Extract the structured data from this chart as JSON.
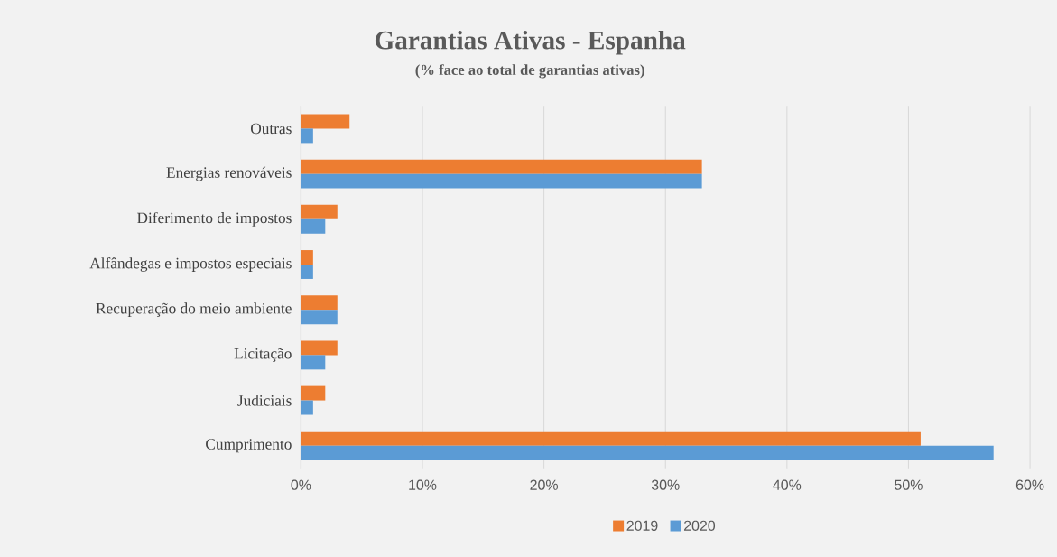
{
  "chart_data": {
    "type": "bar",
    "orientation": "horizontal",
    "title": "Garantias Ativas - Espanha",
    "subtitle": "(% face ao total de garantias ativas)",
    "categories": [
      "Outras",
      "Energias renováveis",
      "Diferimento de impostos",
      "Alfândegas e impostos especiais",
      "Recuperação do meio ambiente",
      "Licitação",
      "Judiciais",
      "Cumprimento"
    ],
    "series": [
      {
        "name": "2019",
        "color": "#ed7d31",
        "values": [
          4,
          33,
          3,
          1,
          3,
          3,
          2,
          51
        ]
      },
      {
        "name": "2020",
        "color": "#5b9bd5",
        "values": [
          1,
          33,
          2,
          1,
          3,
          2,
          1,
          57
        ]
      }
    ],
    "xlim": [
      0,
      60
    ],
    "xticks": [
      {
        "value": 0,
        "label": "0%"
      },
      {
        "value": 10,
        "label": "10%"
      },
      {
        "value": 20,
        "label": "20%"
      },
      {
        "value": 30,
        "label": "30%"
      },
      {
        "value": 40,
        "label": "40%"
      },
      {
        "value": 50,
        "label": "50%"
      },
      {
        "value": 60,
        "label": "60%"
      }
    ],
    "grid": "x",
    "legend": "bottom"
  }
}
